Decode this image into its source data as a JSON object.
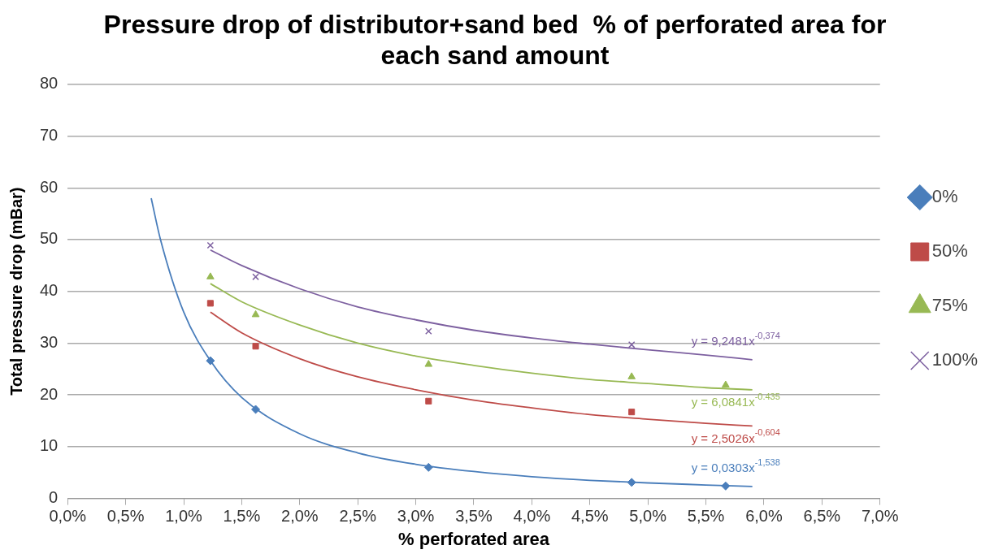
{
  "chart_data": {
    "type": "scatter",
    "title": "Pressure drop of distributor+sand bed  % of perforated area for each sand amount",
    "xlabel": "% perforated area",
    "ylabel": "Total pressure drop (mBar)",
    "xlim": [
      0,
      7
    ],
    "xticks": [
      {
        "value": 0,
        "label": "0,0%"
      },
      {
        "value": 0.5,
        "label": "0,5%"
      },
      {
        "value": 1,
        "label": "1,0%"
      },
      {
        "value": 1.5,
        "label": "1,5%"
      },
      {
        "value": 2,
        "label": "2,0%"
      },
      {
        "value": 2.5,
        "label": "2,5%"
      },
      {
        "value": 3,
        "label": "3,0%"
      },
      {
        "value": 3.5,
        "label": "3,5%"
      },
      {
        "value": 4,
        "label": "4,0%"
      },
      {
        "value": 4.5,
        "label": "4,5%"
      },
      {
        "value": 5,
        "label": "5,0%"
      },
      {
        "value": 5.5,
        "label": "5,5%"
      },
      {
        "value": 6,
        "label": "6,0%"
      },
      {
        "value": 6.5,
        "label": "6,5%"
      },
      {
        "value": 7,
        "label": "7,0%"
      }
    ],
    "ylim": [
      0,
      80
    ],
    "yticks": [
      0,
      10,
      20,
      30,
      40,
      50,
      60,
      70,
      80
    ],
    "grid": "y",
    "legend": "right",
    "series": [
      {
        "name": "0%",
        "color": "#4a7ebb",
        "marker": "diamond",
        "x": [
          1.23,
          1.62,
          3.11,
          4.86,
          5.67
        ],
        "values": [
          26.6,
          17.2,
          6.0,
          3.1,
          2.4
        ]
      },
      {
        "name": "50%",
        "color": "#be4b48",
        "marker": "square",
        "x": [
          1.23,
          1.62,
          3.11,
          4.86
        ],
        "values": [
          37.7,
          29.4,
          18.8,
          16.7
        ]
      },
      {
        "name": "75%",
        "color": "#98b954",
        "marker": "triangle",
        "x": [
          1.23,
          1.62,
          3.11,
          4.86,
          5.67
        ],
        "values": [
          42.8,
          35.5,
          25.9,
          23.5,
          21.9
        ]
      },
      {
        "name": "100%",
        "color": "#7d60a0",
        "marker": "cross",
        "x": [
          1.23,
          1.62,
          3.11,
          4.86
        ],
        "values": [
          48.9,
          42.8,
          32.3,
          29.7
        ]
      },
      {
        "type": "line",
        "color": "#4a7ebb",
        "marker": "none",
        "x": [
          0.72,
          0.8,
          1.0,
          1.23,
          1.5,
          2.0,
          2.5,
          3.0,
          3.5,
          4.0,
          4.5,
          5.0,
          5.5,
          5.9
        ],
        "values": [
          58,
          50,
          36,
          26.6,
          19.5,
          12.5,
          8.8,
          6.6,
          5.2,
          4.2,
          3.5,
          3.0,
          2.6,
          2.3
        ]
      },
      {
        "type": "line",
        "color": "#be4b48",
        "marker": "none",
        "x": [
          1.23,
          1.5,
          2.0,
          2.5,
          3.0,
          3.5,
          4.0,
          4.5,
          5.0,
          5.5,
          5.9
        ],
        "values": [
          36,
          32,
          27,
          23.5,
          21,
          19,
          17.5,
          16.2,
          15.3,
          14.5,
          14
        ]
      },
      {
        "type": "line",
        "color": "#98b954",
        "marker": "none",
        "x": [
          1.23,
          1.5,
          2.0,
          2.5,
          3.0,
          3.5,
          4.0,
          4.5,
          5.0,
          5.5,
          5.9
        ],
        "values": [
          41.5,
          38,
          33.5,
          30,
          27.5,
          25.7,
          24.2,
          23,
          22.2,
          21.4,
          21
        ]
      },
      {
        "type": "line",
        "color": "#7d60a0",
        "marker": "none",
        "x": [
          1.23,
          1.5,
          2.0,
          2.5,
          3.0,
          3.5,
          4.0,
          4.5,
          5.0,
          5.5,
          5.9
        ],
        "values": [
          48,
          45,
          40.5,
          37,
          34.5,
          32.5,
          31,
          29.8,
          28.7,
          27.7,
          26.8
        ]
      }
    ],
    "annotations": [
      "y = 9,2481x$^{-0,374}$",
      "y = 6,0841x$^{-0.435}$",
      "y = 2,5026x$^{-0,604}$",
      "y = 0,0303x$^{-1,538}$"
    ]
  }
}
